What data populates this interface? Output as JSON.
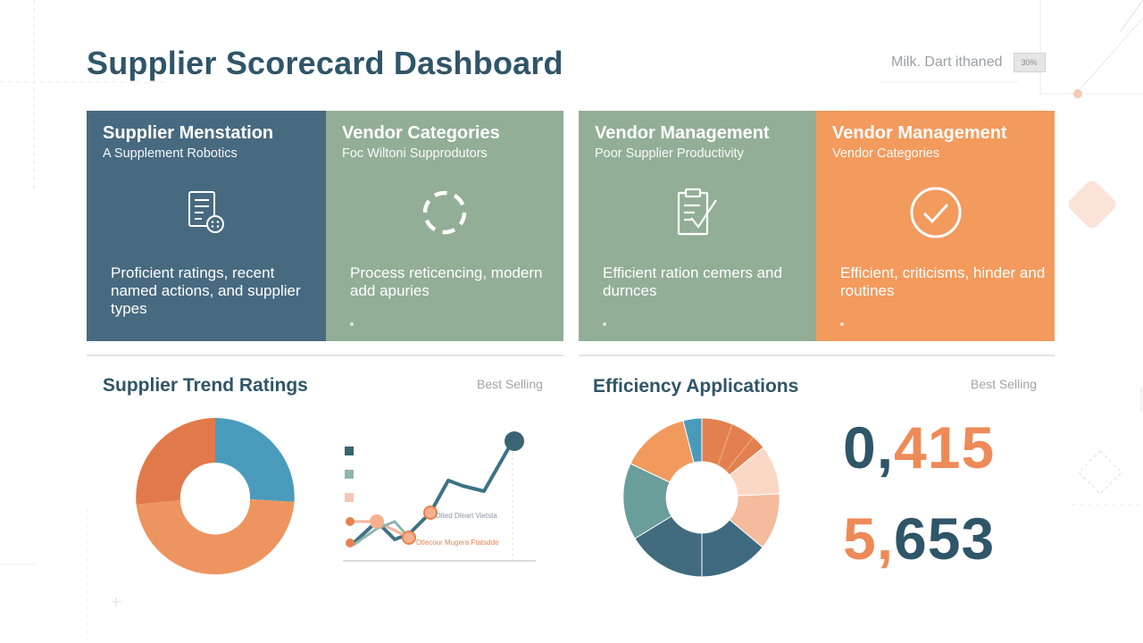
{
  "page": {
    "title": "Supplier Scorecard Dashboard"
  },
  "header": {
    "meta_text": "Milk. Dart ithaned",
    "badge": "30%"
  },
  "cards": [
    {
      "title": "Supplier Menstation",
      "subtitle": "A Supplement Robotics",
      "icon": "document-list-icon",
      "description": "Proficient ratings, recent named actions, and supplier types",
      "color": "#476a80"
    },
    {
      "title": "Vendor Categories",
      "subtitle": "Foc Wiltoni Supprodutors",
      "icon": "loading-spinner-icon",
      "description": "Process reticencing, modern add apuries",
      "color": "#92ae96"
    },
    {
      "title": "Vendor Management",
      "subtitle": "Poor Supplier Productivity",
      "icon": "clipboard-check-icon",
      "description": "Efficient ration cemers and durnces",
      "color": "#92ae96"
    },
    {
      "title": "Vendor Management",
      "subtitle": "Vendor Categories",
      "icon": "check-circle-icon",
      "description": "Efficient, criticisms, hinder and routines",
      "color": "#f39a5d"
    }
  ],
  "left_panel": {
    "title": "Supplier Trend Ratings",
    "label": "Best Selling",
    "trend_labels": [
      "Dited Dleart Vietsta",
      "Dtlecour Mugera Ftatsdde"
    ]
  },
  "right_panel": {
    "title": "Efficiency Applications",
    "label": "Best Selling",
    "metrics": [
      {
        "prefix": "0,",
        "emphasis": "415"
      },
      {
        "emphasis": "5,",
        "suffix": "653"
      }
    ]
  },
  "colors": {
    "navy": "#2f5568",
    "teal": "#4a9bbb",
    "orange": "#ee8a57",
    "sage": "#92ae96"
  }
}
